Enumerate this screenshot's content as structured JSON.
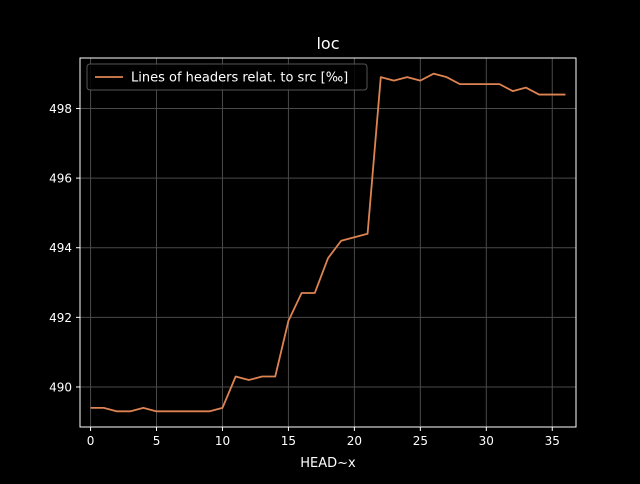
{
  "chart_data": {
    "type": "line",
    "title": "loc",
    "xlabel": "HEAD~x",
    "ylabel": "",
    "xlim": [
      -0.8,
      36.8
    ],
    "ylim": [
      488.85,
      499.45
    ],
    "xticks": [
      0,
      5,
      10,
      15,
      20,
      25,
      30,
      35
    ],
    "yticks": [
      490,
      492,
      494,
      496,
      498
    ],
    "grid": true,
    "legend_position": "top-left",
    "background": "#000000",
    "grid_color": "#4a4a4a",
    "axis_color": "#ffffff",
    "series": [
      {
        "name": "Lines of headers relat. to src [‰]",
        "color": "#dd8452",
        "x": [
          0,
          1,
          2,
          3,
          4,
          5,
          6,
          7,
          8,
          9,
          10,
          11,
          12,
          13,
          14,
          15,
          16,
          17,
          18,
          19,
          20,
          21,
          22,
          23,
          24,
          25,
          26,
          27,
          28,
          29,
          30,
          31,
          32,
          33,
          34,
          35,
          36
        ],
        "y": [
          489.4,
          489.4,
          489.3,
          489.3,
          489.4,
          489.3,
          489.3,
          489.3,
          489.3,
          489.3,
          489.4,
          490.3,
          490.2,
          490.3,
          490.3,
          491.9,
          492.7,
          492.7,
          493.7,
          494.2,
          494.3,
          494.4,
          498.9,
          498.8,
          498.9,
          498.8,
          499.0,
          498.9,
          498.7,
          498.7,
          498.7,
          498.7,
          498.5,
          498.6,
          498.4,
          498.4,
          498.4
        ]
      }
    ]
  }
}
